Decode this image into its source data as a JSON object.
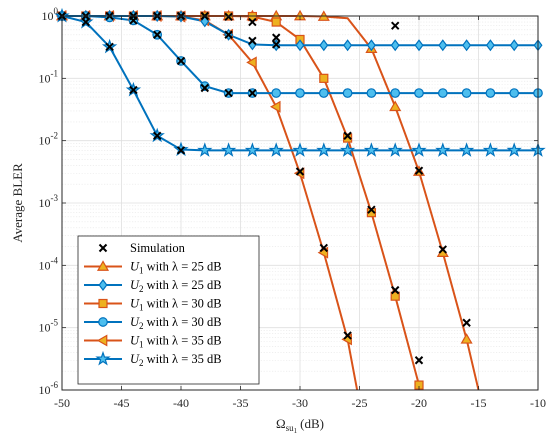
{
  "chart_data": {
    "type": "line",
    "xlabel": "Ω",
    "xlabel_sub": "su",
    "xlabel_subsub": "1",
    "xlabel_unit": "(dB)",
    "ylabel": "Average BLER",
    "xlim": [
      -50,
      -10
    ],
    "ylim": [
      1e-06,
      1
    ],
    "yscale": "log",
    "grid": true,
    "legend_position": "bottom-left",
    "x_ticks": [
      "-50",
      "-45",
      "-40",
      "-35",
      "-30",
      "-25",
      "-20",
      "-15",
      "-10"
    ],
    "y_ticks": [
      {
        "base": "10",
        "exp": "0"
      },
      {
        "base": "10",
        "exp": "-1"
      },
      {
        "base": "10",
        "exp": "-2"
      },
      {
        "base": "10",
        "exp": "-3"
      },
      {
        "base": "10",
        "exp": "-4"
      },
      {
        "base": "10",
        "exp": "-5"
      },
      {
        "base": "10",
        "exp": "-6"
      }
    ],
    "line_color_u1": "#d95319",
    "marker_fill_u1": "#edb120",
    "line_color_u2": "#0072bd",
    "marker_fill_u2": "#4dbeee",
    "simulation": {
      "label": "Simulation",
      "color": "#000000",
      "points": [
        {
          "x": -50,
          "y": 1.0
        },
        {
          "x": -48,
          "y": 1.0
        },
        {
          "x": -46,
          "y": 1.0
        },
        {
          "x": -44,
          "y": 1.0
        },
        {
          "x": -42,
          "y": 1.0
        },
        {
          "x": -40,
          "y": 1.0
        },
        {
          "x": -38,
          "y": 1.0
        },
        {
          "x": -36,
          "y": 0.97
        },
        {
          "x": -34,
          "y": 0.8
        },
        {
          "x": -32,
          "y": 0.45
        },
        {
          "x": -30,
          "y": 0.0032
        },
        {
          "x": -28,
          "y": 0.00019
        },
        {
          "x": -26,
          "y": 7.5e-06
        },
        {
          "x": -26,
          "y": 0.012
        },
        {
          "x": -24,
          "y": 0.00078
        },
        {
          "x": -22,
          "y": 4e-05
        },
        {
          "x": -20,
          "y": 3e-06
        },
        {
          "x": -22,
          "y": 0.7
        },
        {
          "x": -20,
          "y": 0.0033
        },
        {
          "x": -18,
          "y": 0.00018
        },
        {
          "x": -16,
          "y": 1.2e-05
        },
        {
          "x": -48,
          "y": 0.8
        },
        {
          "x": -46,
          "y": 0.32
        },
        {
          "x": -44,
          "y": 0.065
        },
        {
          "x": -42,
          "y": 0.012
        },
        {
          "x": -40,
          "y": 0.007
        },
        {
          "x": -38,
          "y": 0.07
        },
        {
          "x": -40,
          "y": 0.19
        },
        {
          "x": -42,
          "y": 0.5
        },
        {
          "x": -44,
          "y": 0.85
        },
        {
          "x": -36,
          "y": 0.058
        },
        {
          "x": -34,
          "y": 0.058
        },
        {
          "x": -36,
          "y": 0.5
        },
        {
          "x": -34,
          "y": 0.4
        },
        {
          "x": -32,
          "y": 0.35
        }
      ]
    },
    "series": [
      {
        "name": "with λ = 25 dB",
        "user": "U",
        "user_sub": "1",
        "family": "u1",
        "marker": "triangle-up",
        "points": [
          {
            "x": -50,
            "y": 1.0
          },
          {
            "x": -48,
            "y": 1.0
          },
          {
            "x": -46,
            "y": 1.0
          },
          {
            "x": -44,
            "y": 1.0
          },
          {
            "x": -42,
            "y": 1.0
          },
          {
            "x": -40,
            "y": 1.0
          },
          {
            "x": -38,
            "y": 1.0
          },
          {
            "x": -36,
            "y": 1.0
          },
          {
            "x": -34,
            "y": 1.0
          },
          {
            "x": -32,
            "y": 1.0
          },
          {
            "x": -30,
            "y": 1.0
          },
          {
            "x": -28,
            "y": 0.98
          },
          {
            "x": -26,
            "y": 0.92
          },
          {
            "x": -24,
            "y": 0.3
          },
          {
            "x": -22,
            "y": 0.035
          },
          {
            "x": -20,
            "y": 0.0032
          },
          {
            "x": -18,
            "y": 0.00016
          },
          {
            "x": -16,
            "y": 6.5e-06
          },
          {
            "x": -15,
            "y": 1e-06
          }
        ],
        "marker_every": [
          0,
          1,
          2,
          3,
          4,
          5,
          6,
          7,
          8,
          9,
          10,
          11,
          13,
          14,
          15,
          16,
          17
        ]
      },
      {
        "name": "with λ = 25 dB",
        "user": "U",
        "user_sub": "2",
        "family": "u2",
        "marker": "diamond",
        "points": [
          {
            "x": -50,
            "y": 1.0
          },
          {
            "x": -48,
            "y": 1.0
          },
          {
            "x": -46,
            "y": 1.0
          },
          {
            "x": -44,
            "y": 1.0
          },
          {
            "x": -42,
            "y": 1.0
          },
          {
            "x": -40,
            "y": 0.98
          },
          {
            "x": -38,
            "y": 0.82
          },
          {
            "x": -36,
            "y": 0.5
          },
          {
            "x": -34,
            "y": 0.35
          },
          {
            "x": -32,
            "y": 0.34
          },
          {
            "x": -30,
            "y": 0.34
          },
          {
            "x": -28,
            "y": 0.34
          },
          {
            "x": -26,
            "y": 0.34
          },
          {
            "x": -24,
            "y": 0.34
          },
          {
            "x": -22,
            "y": 0.34
          },
          {
            "x": -20,
            "y": 0.34
          },
          {
            "x": -18,
            "y": 0.34
          },
          {
            "x": -16,
            "y": 0.34
          },
          {
            "x": -14,
            "y": 0.34
          },
          {
            "x": -12,
            "y": 0.34
          },
          {
            "x": -10,
            "y": 0.34
          }
        ],
        "marker_every": [
          0,
          1,
          2,
          3,
          4,
          5,
          6,
          7,
          8,
          9,
          10,
          11,
          12,
          13,
          14,
          15,
          16,
          17,
          18,
          19,
          20
        ]
      },
      {
        "name": "with λ = 30 dB",
        "user": "U",
        "user_sub": "1",
        "family": "u1",
        "marker": "square",
        "points": [
          {
            "x": -50,
            "y": 1.0
          },
          {
            "x": -48,
            "y": 1.0
          },
          {
            "x": -46,
            "y": 1.0
          },
          {
            "x": -44,
            "y": 1.0
          },
          {
            "x": -42,
            "y": 1.0
          },
          {
            "x": -40,
            "y": 1.0
          },
          {
            "x": -38,
            "y": 1.0
          },
          {
            "x": -36,
            "y": 1.0
          },
          {
            "x": -34,
            "y": 0.98
          },
          {
            "x": -32,
            "y": 0.8
          },
          {
            "x": -30,
            "y": 0.42
          },
          {
            "x": -28,
            "y": 0.1
          },
          {
            "x": -26,
            "y": 0.011
          },
          {
            "x": -24,
            "y": 0.0007
          },
          {
            "x": -22,
            "y": 3.2e-05
          },
          {
            "x": -20,
            "y": 1.2e-06
          },
          {
            "x": -19.9,
            "y": 1e-06
          }
        ],
        "marker_every": [
          0,
          1,
          2,
          3,
          4,
          5,
          6,
          7,
          8,
          9,
          10,
          11,
          12,
          13,
          14,
          15
        ]
      },
      {
        "name": "with λ = 30 dB",
        "user": "U",
        "user_sub": "2",
        "family": "u2",
        "marker": "circle",
        "points": [
          {
            "x": -50,
            "y": 1.0
          },
          {
            "x": -48,
            "y": 1.0
          },
          {
            "x": -46,
            "y": 0.95
          },
          {
            "x": -44,
            "y": 0.85
          },
          {
            "x": -42,
            "y": 0.5
          },
          {
            "x": -40,
            "y": 0.19
          },
          {
            "x": -38,
            "y": 0.075
          },
          {
            "x": -36,
            "y": 0.058
          },
          {
            "x": -34,
            "y": 0.058
          },
          {
            "x": -32,
            "y": 0.058
          },
          {
            "x": -30,
            "y": 0.058
          },
          {
            "x": -28,
            "y": 0.058
          },
          {
            "x": -26,
            "y": 0.058
          },
          {
            "x": -24,
            "y": 0.058
          },
          {
            "x": -22,
            "y": 0.058
          },
          {
            "x": -20,
            "y": 0.058
          },
          {
            "x": -18,
            "y": 0.058
          },
          {
            "x": -16,
            "y": 0.058
          },
          {
            "x": -14,
            "y": 0.058
          },
          {
            "x": -12,
            "y": 0.058
          },
          {
            "x": -10,
            "y": 0.058
          }
        ],
        "marker_every": [
          0,
          1,
          2,
          3,
          4,
          5,
          6,
          7,
          8,
          9,
          10,
          11,
          12,
          13,
          14,
          15,
          16,
          17,
          18,
          19,
          20
        ]
      },
      {
        "name": "with λ = 35 dB",
        "user": "U",
        "user_sub": "1",
        "family": "u1",
        "marker": "triangle-left",
        "points": [
          {
            "x": -50,
            "y": 1.0
          },
          {
            "x": -48,
            "y": 1.0
          },
          {
            "x": -46,
            "y": 1.0
          },
          {
            "x": -44,
            "y": 1.0
          },
          {
            "x": -42,
            "y": 1.0
          },
          {
            "x": -40,
            "y": 0.98
          },
          {
            "x": -38,
            "y": 0.85
          },
          {
            "x": -36,
            "y": 0.5
          },
          {
            "x": -34,
            "y": 0.18
          },
          {
            "x": -32,
            "y": 0.035
          },
          {
            "x": -30,
            "y": 0.003
          },
          {
            "x": -28,
            "y": 0.00016
          },
          {
            "x": -26,
            "y": 6.5e-06
          },
          {
            "x": -25.2,
            "y": 1e-06
          }
        ],
        "marker_every": [
          0,
          1,
          2,
          3,
          4,
          5,
          6,
          7,
          8,
          9,
          10,
          11,
          12
        ]
      },
      {
        "name": "with λ = 35 dB",
        "user": "U",
        "user_sub": "2",
        "family": "u2",
        "marker": "star",
        "points": [
          {
            "x": -50,
            "y": 1.0
          },
          {
            "x": -48,
            "y": 0.8
          },
          {
            "x": -46,
            "y": 0.32
          },
          {
            "x": -44,
            "y": 0.065
          },
          {
            "x": -42,
            "y": 0.012
          },
          {
            "x": -40,
            "y": 0.0072
          },
          {
            "x": -38,
            "y": 0.007
          },
          {
            "x": -36,
            "y": 0.007
          },
          {
            "x": -34,
            "y": 0.007
          },
          {
            "x": -32,
            "y": 0.007
          },
          {
            "x": -30,
            "y": 0.007
          },
          {
            "x": -28,
            "y": 0.007
          },
          {
            "x": -26,
            "y": 0.007
          },
          {
            "x": -24,
            "y": 0.007
          },
          {
            "x": -22,
            "y": 0.007
          },
          {
            "x": -20,
            "y": 0.007
          },
          {
            "x": -18,
            "y": 0.007
          },
          {
            "x": -16,
            "y": 0.007
          },
          {
            "x": -14,
            "y": 0.007
          },
          {
            "x": -12,
            "y": 0.007
          },
          {
            "x": -10,
            "y": 0.007
          }
        ],
        "marker_every": [
          0,
          1,
          2,
          3,
          4,
          5,
          6,
          7,
          8,
          9,
          10,
          11,
          12,
          13,
          14,
          15,
          16,
          17,
          18,
          19,
          20
        ]
      }
    ]
  }
}
